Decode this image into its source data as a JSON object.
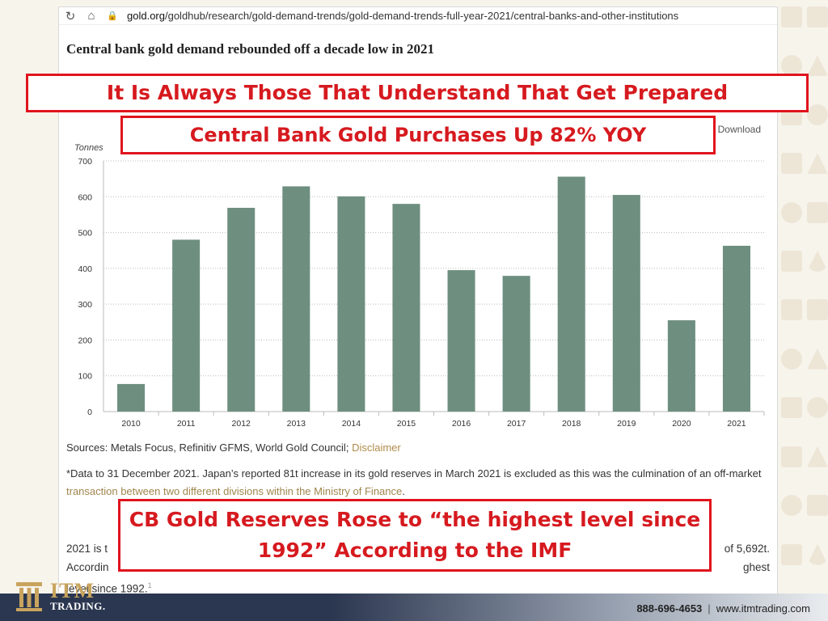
{
  "browser": {
    "url_domain": "gold.org",
    "url_path": "/goldhub/research/gold-demand-trends/gold-demand-trends-full-year-2021/central-banks-and-other-institutions"
  },
  "article": {
    "title": "Central bank gold demand rebounded off a decade low in 2021",
    "download_label": "Download",
    "sources_text": "Sources: Metals Focus, Refinitiv GFMS, World Gold Council;",
    "disclaimer_link": "Disclaimer",
    "footnote_text": "*Data to 31 December 2021. Japan’s reported 81t increase in its gold reserves in March 2021 is excluded as this was the culmination of an off-market",
    "footnote_link": "transaction between two different divisions within the Ministry of Finance",
    "footnote_end": ".",
    "body_line1_start": "2021 is t",
    "body_line1_end": "of 5,692t.",
    "body_line2_start": "Accordin",
    "body_line2_end": "ghest",
    "body_line3": "level since 1992.",
    "body_sup": "1"
  },
  "callouts": {
    "headline": "It Is Always Those That Understand That Get Prepared",
    "subhead": "Central Bank Gold Purchases Up 82% YOY",
    "bottom_line1": "CB Gold Reserves Rose to “the highest level since",
    "bottom_line2": "1992” According to the IMF"
  },
  "chart_data": {
    "type": "bar",
    "ylabel": "Tonnes",
    "ylim": [
      0,
      700
    ],
    "yticks": [
      0,
      100,
      200,
      300,
      400,
      500,
      600,
      700
    ],
    "categories": [
      "2010",
      "2011",
      "2012",
      "2013",
      "2014",
      "2015",
      "2016",
      "2017",
      "2018",
      "2019",
      "2020",
      "2021"
    ],
    "values": [
      77,
      480,
      569,
      629,
      601,
      580,
      395,
      379,
      656,
      605,
      255,
      463
    ],
    "grid": true,
    "bar_color": "#6e8f80"
  },
  "footer": {
    "brand": "ITM",
    "brand_sub": "TRADING.",
    "phone": "888-696-4653",
    "separator": "|",
    "website": "www.itmtrading.com"
  }
}
